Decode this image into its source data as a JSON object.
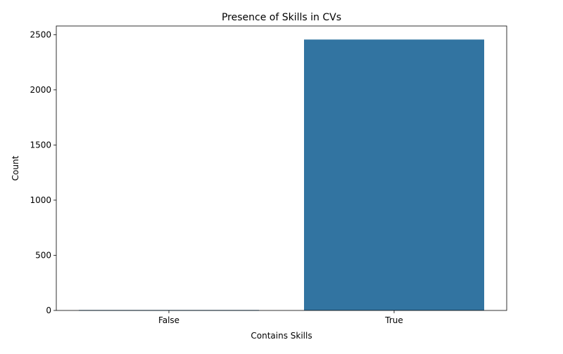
{
  "chart_data": {
    "type": "bar",
    "title": "Presence of Skills in CVs",
    "xlabel": "Contains Skills",
    "ylabel": "Count",
    "categories": [
      "False",
      "True"
    ],
    "values": [
      4,
      2456
    ],
    "ylim": [
      0,
      2578.8
    ],
    "yticks": [
      0,
      500,
      1000,
      1500,
      2000,
      2500
    ],
    "grid": false,
    "legend": "none",
    "bar_color": "#3274a1"
  }
}
